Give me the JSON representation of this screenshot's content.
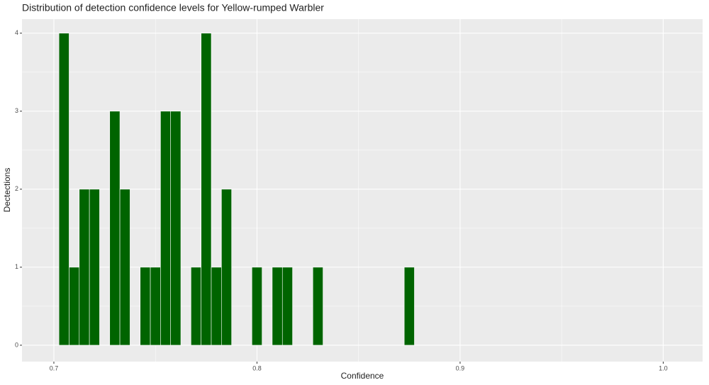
{
  "chart_data": {
    "type": "histogram",
    "title": "Distribution of detection confidence levels for Yellow-rumped Warbler",
    "x_label": "Confidence",
    "y_label": "Dectections",
    "bins": [
      0.7025,
      0.7075,
      0.7125,
      0.7175,
      0.7225,
      0.7275,
      0.7325,
      0.7375,
      0.7425,
      0.7475,
      0.7525,
      0.7575,
      0.7625,
      0.7675,
      0.7725,
      0.7775,
      0.7825,
      0.7875,
      0.7925,
      0.7975,
      0.8025,
      0.8075,
      0.8125,
      0.8175,
      0.8225,
      0.8275,
      0.8325,
      0.8375,
      0.8425,
      0.8475,
      0.8525,
      0.8575,
      0.8625,
      0.8675,
      0.8725,
      0.8775
    ],
    "values": [
      4,
      1,
      2,
      2,
      0,
      3,
      2,
      0,
      1,
      1,
      3,
      3,
      0,
      1,
      4,
      1,
      2,
      0,
      0,
      1,
      0,
      1,
      1,
      0,
      0,
      1,
      0,
      0,
      0,
      0,
      0,
      0,
      0,
      0,
      1
    ],
    "color": "#006400",
    "xlim": [
      0.6843,
      1.0194
    ],
    "xticks": [
      0.7,
      0.8,
      0.9,
      {
        "value": 1,
        "label": "1.0"
      }
    ],
    "ylim": [
      -0.21,
      4.18
    ],
    "yticks": [
      0,
      1,
      2,
      3,
      4
    ],
    "grid": true
  }
}
